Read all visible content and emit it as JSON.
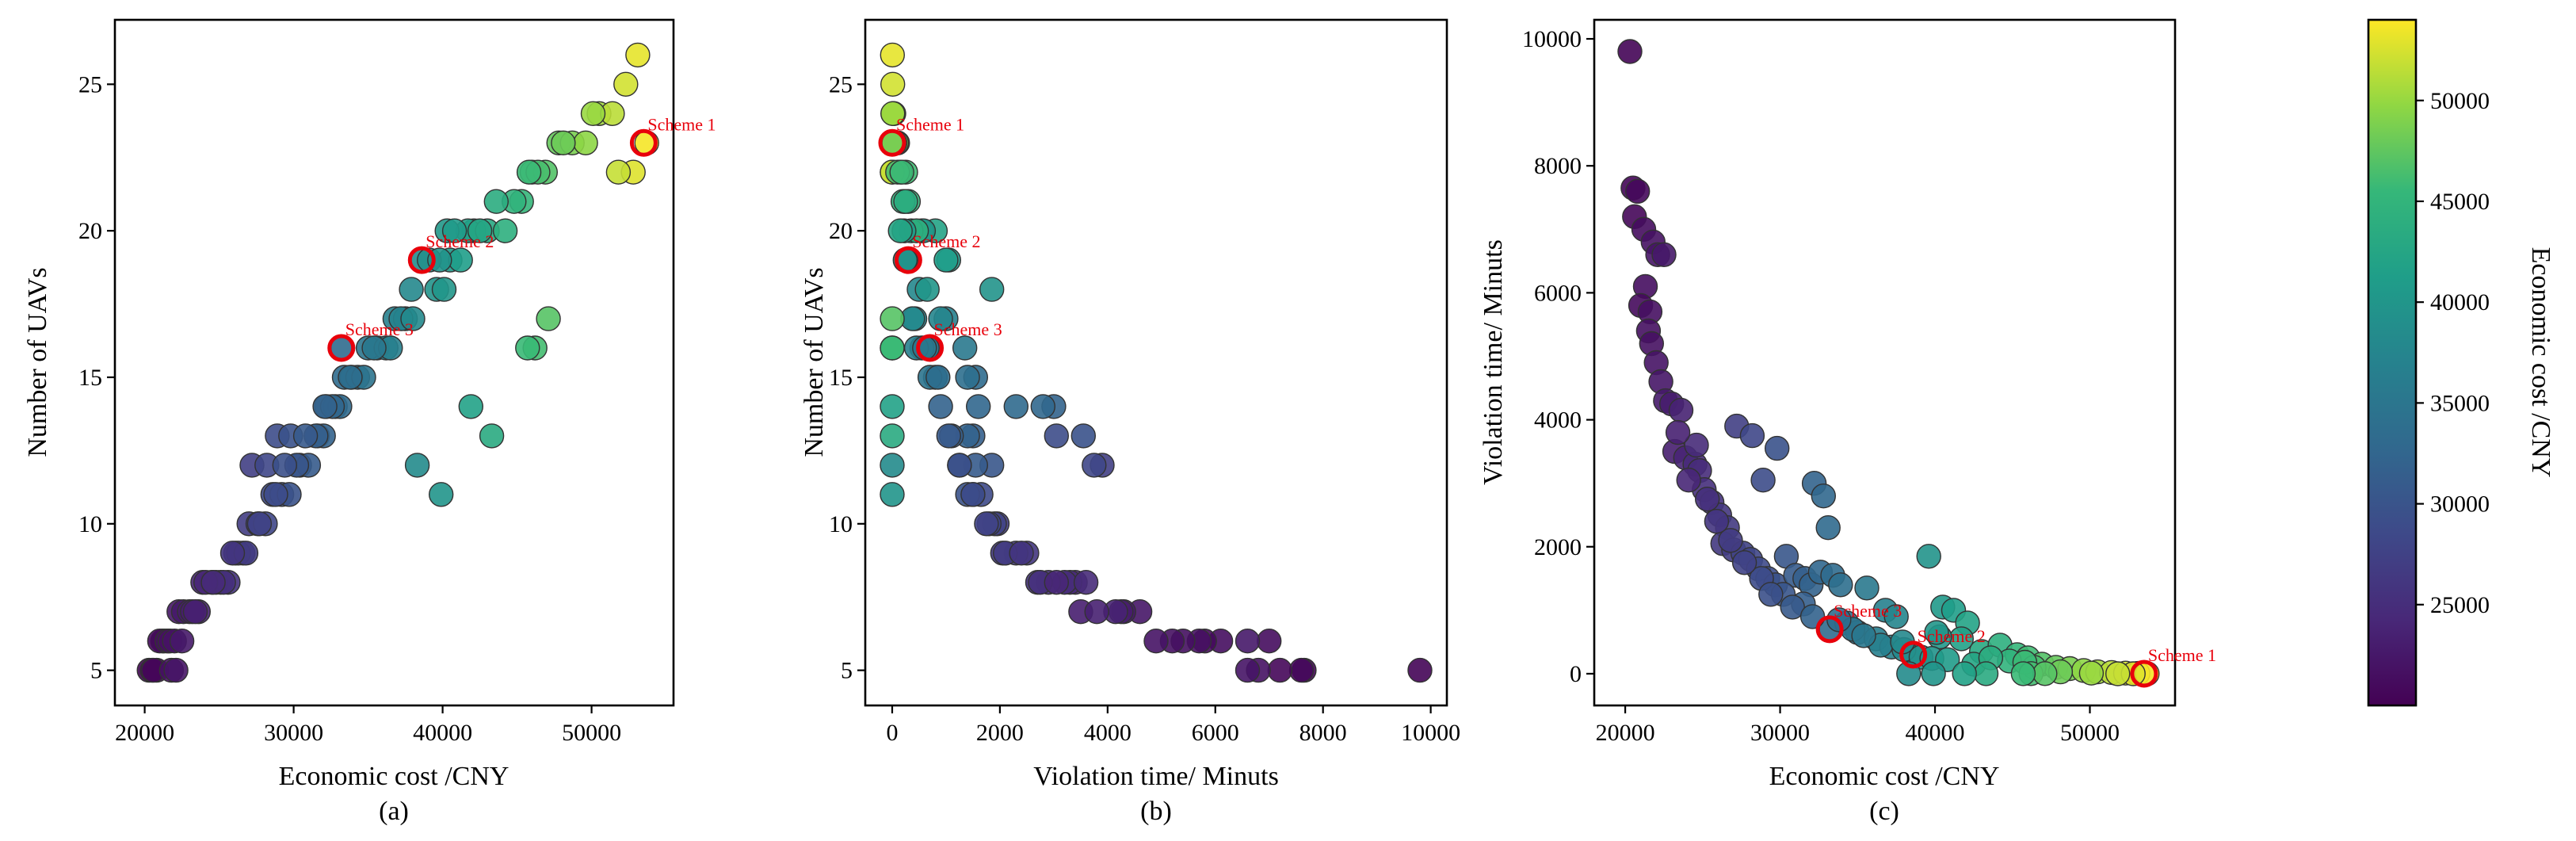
{
  "colors": {
    "highlight": "#e8000b",
    "point_edge": "#333333",
    "colormap": "viridis"
  },
  "colorbar": {
    "label": "Economic cost /CNY",
    "ticks": [
      25000,
      30000,
      35000,
      40000,
      45000,
      50000
    ],
    "range": [
      20000,
      54000
    ]
  },
  "chart_data": [
    {
      "type": "scatter",
      "subplot_label": "(a)",
      "xlabel": "Economic cost /CNY",
      "ylabel": "Number of UAVs",
      "xlim": [
        18000,
        55500
      ],
      "ylim": [
        3.8,
        27.2
      ],
      "xticks": [
        20000,
        30000,
        40000,
        50000
      ],
      "yticks": [
        5,
        10,
        15,
        20,
        25
      ],
      "annotations": [
        {
          "label": "Scheme 1",
          "x": 53500,
          "y": 23
        },
        {
          "label": "Scheme 2",
          "x": 38600,
          "y": 19
        },
        {
          "label": "Scheme 3",
          "x": 33200,
          "y": 16
        }
      ]
    },
    {
      "type": "scatter",
      "subplot_label": "(b)",
      "xlabel": "Violation time/ Minuts",
      "ylabel": "Number of UAVs",
      "xlim": [
        -500,
        10300
      ],
      "ylim": [
        3.8,
        27.2
      ],
      "xticks": [
        0,
        2000,
        4000,
        6000,
        8000,
        10000
      ],
      "yticks": [
        5,
        10,
        15,
        20,
        25
      ],
      "annotations": [
        {
          "label": "Scheme 1",
          "x": 0,
          "y": 23
        },
        {
          "label": "Scheme 2",
          "x": 300,
          "y": 19
        },
        {
          "label": "Scheme 3",
          "x": 700,
          "y": 16
        }
      ]
    },
    {
      "type": "scatter",
      "subplot_label": "(c)",
      "xlabel": "Economic cost /CNY",
      "ylabel": "Violation time/ Minuts",
      "xlim": [
        18000,
        55500
      ],
      "ylim": [
        -500,
        10300
      ],
      "xticks": [
        20000,
        30000,
        40000,
        50000
      ],
      "yticks": [
        0,
        2000,
        4000,
        6000,
        8000,
        10000
      ],
      "annotations": [
        {
          "label": "Scheme 1",
          "x": 53500,
          "y": 0
        },
        {
          "label": "Scheme 2",
          "x": 38600,
          "y": 300
        },
        {
          "label": "Scheme 3",
          "x": 33200,
          "y": 700
        }
      ]
    }
  ],
  "points": [
    [
      20300,
      9800,
      5
    ],
    [
      20500,
      7650,
      5
    ],
    [
      20800,
      7600,
      5
    ],
    [
      20600,
      7200,
      5
    ],
    [
      21200,
      7000,
      6
    ],
    [
      21800,
      6800,
      5
    ],
    [
      22100,
      6600,
      5
    ],
    [
      21300,
      6100,
      6
    ],
    [
      21000,
      5800,
      6
    ],
    [
      21600,
      5700,
      6
    ],
    [
      21500,
      5400,
      6
    ],
    [
      21700,
      5200,
      6
    ],
    [
      22000,
      4900,
      6
    ],
    [
      22300,
      4600,
      7
    ],
    [
      22600,
      4300,
      7
    ],
    [
      23000,
      4250,
      7
    ],
    [
      23600,
      4150,
      7
    ],
    [
      22500,
      6600,
      6
    ],
    [
      23200,
      3500,
      7
    ],
    [
      23900,
      3400,
      8
    ],
    [
      24500,
      3300,
      8
    ],
    [
      24800,
      3200,
      8
    ],
    [
      25100,
      2900,
      8
    ],
    [
      25600,
      2700,
      8
    ],
    [
      26100,
      2500,
      9
    ],
    [
      26600,
      2300,
      9
    ],
    [
      26300,
      2050,
      9
    ],
    [
      27000,
      1950,
      10
    ],
    [
      27600,
      1900,
      10
    ],
    [
      28100,
      1800,
      10
    ],
    [
      28600,
      1650,
      11
    ],
    [
      29200,
      1500,
      11
    ],
    [
      29700,
      1400,
      11
    ],
    [
      27200,
      3900,
      12
    ],
    [
      28200,
      3750,
      12
    ],
    [
      28900,
      3050,
      13
    ],
    [
      29800,
      3550,
      13
    ],
    [
      32200,
      3000,
      14
    ],
    [
      32800,
      2800,
      14
    ],
    [
      33100,
      2300,
      14
    ],
    [
      30400,
      1850,
      12
    ],
    [
      31000,
      1550,
      12
    ],
    [
      31600,
      1500,
      13
    ],
    [
      32000,
      1400,
      13
    ],
    [
      32600,
      1600,
      14
    ],
    [
      33400,
      1550,
      15
    ],
    [
      33900,
      1400,
      15
    ],
    [
      35600,
      1350,
      16
    ],
    [
      36800,
      1000,
      17
    ],
    [
      37500,
      900,
      17
    ],
    [
      39600,
      1850,
      18
    ],
    [
      40500,
      1050,
      19
    ],
    [
      41200,
      1000,
      19
    ],
    [
      42100,
      800,
      20
    ],
    [
      41700,
      550,
      20
    ],
    [
      40300,
      580,
      20
    ],
    [
      43000,
      350,
      20
    ],
    [
      44200,
      450,
      20
    ],
    [
      45300,
      300,
      21
    ],
    [
      46000,
      250,
      22
    ],
    [
      46900,
      150,
      22
    ],
    [
      47800,
      100,
      23
    ],
    [
      48700,
      80,
      23
    ],
    [
      49600,
      50,
      23
    ],
    [
      50500,
      30,
      24
    ],
    [
      51400,
      20,
      24
    ],
    [
      52300,
      10,
      25
    ],
    [
      53100,
      5,
      26
    ],
    [
      53700,
      0,
      23
    ],
    [
      52800,
      0,
      22
    ],
    [
      51800,
      0,
      22
    ],
    [
      33300,
      700,
      16
    ],
    [
      38600,
      300,
      19
    ],
    [
      34300,
      800,
      15
    ],
    [
      35000,
      650,
      16
    ],
    [
      36200,
      550,
      16
    ],
    [
      37200,
      420,
      17
    ],
    [
      38000,
      380,
      17
    ],
    [
      39100,
      260,
      19
    ],
    [
      39800,
      240,
      19
    ],
    [
      40800,
      220,
      20
    ],
    [
      42500,
      150,
      20
    ],
    [
      31500,
      1100,
      13
    ],
    [
      30200,
      1250,
      12
    ],
    [
      28800,
      1500,
      11
    ],
    [
      27700,
      1750,
      10
    ],
    [
      26800,
      2100,
      9
    ],
    [
      25900,
      2400,
      9
    ],
    [
      25300,
      2750,
      8
    ],
    [
      24100,
      3050,
      8
    ],
    [
      24600,
      3600,
      8
    ],
    [
      23400,
      3800,
      7
    ],
    [
      30800,
      1050,
      13
    ],
    [
      32100,
      900,
      14
    ],
    [
      34700,
      700,
      15
    ],
    [
      36500,
      450,
      16
    ],
    [
      44800,
      200,
      21
    ],
    [
      46400,
      100,
      22
    ],
    [
      48100,
      30,
      23
    ],
    [
      50100,
      10,
      24
    ],
    [
      29400,
      1250,
      12
    ],
    [
      33800,
      850,
      15
    ],
    [
      35400,
      600,
      16
    ],
    [
      37900,
      500,
      18
    ],
    [
      43600,
      250,
      21
    ],
    [
      45800,
      180,
      22
    ],
    [
      40100,
      650,
      18
    ],
    [
      46200,
      2,
      16
    ],
    [
      47100,
      2,
      17
    ],
    [
      43300,
      1,
      13
    ],
    [
      41900,
      1,
      14
    ],
    [
      38300,
      1,
      12
    ],
    [
      39900,
      1,
      11
    ],
    [
      45700,
      1,
      16
    ]
  ]
}
